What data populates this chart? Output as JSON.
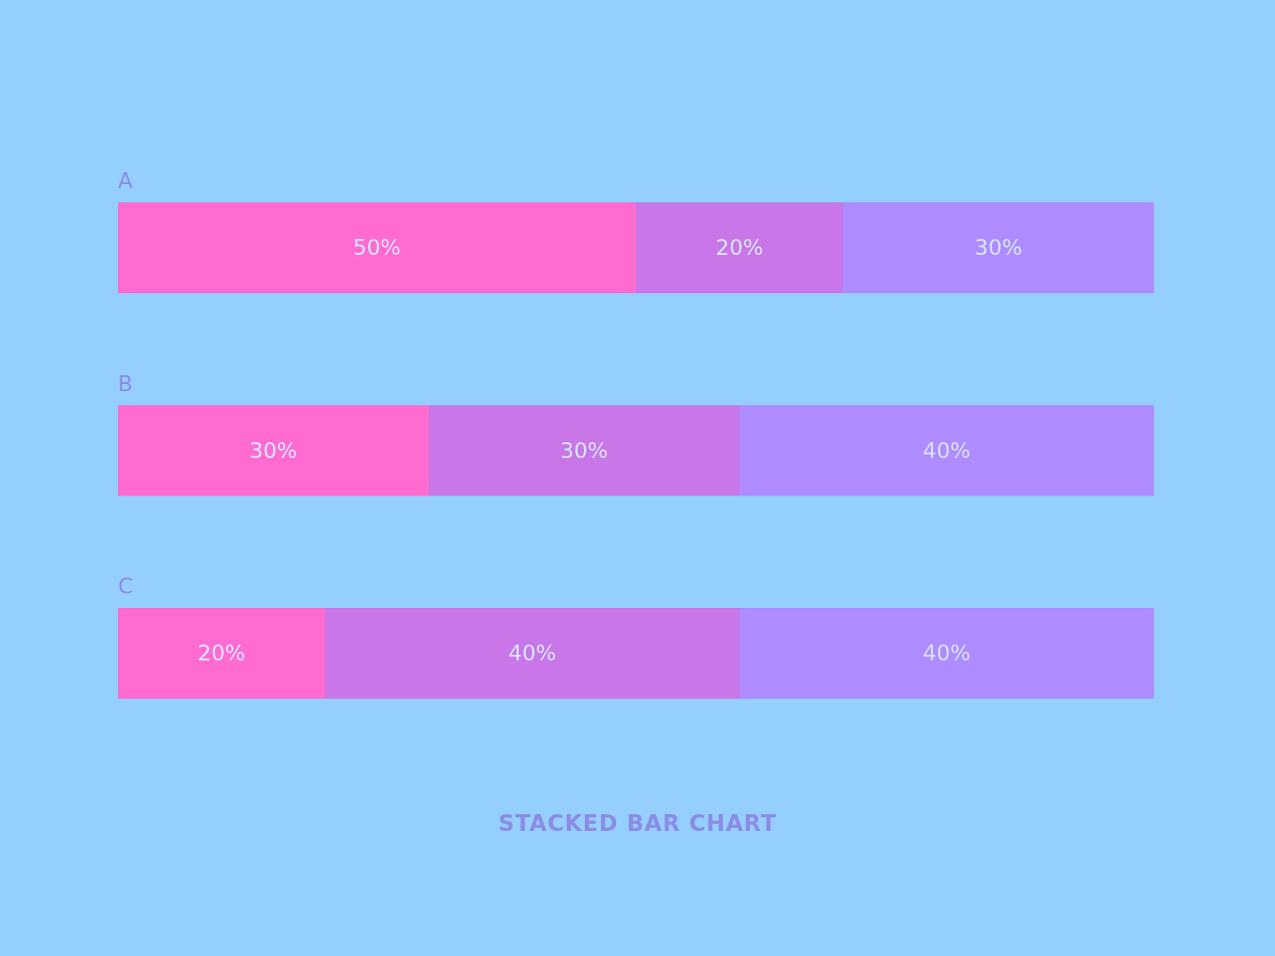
{
  "chart_data": {
    "type": "bar",
    "orientation": "horizontal",
    "stacked": true,
    "title": "STACKED BAR CHART",
    "categories": [
      "A",
      "B",
      "C"
    ],
    "xlim": [
      0,
      100
    ],
    "tick_labels": false,
    "series": [
      {
        "color": "#ff6bd1",
        "values": [
          50,
          30,
          20
        ],
        "value_labels": [
          "50%",
          "30%",
          "20%"
        ]
      },
      {
        "color": "#c876e8",
        "values": [
          20,
          30,
          40
        ],
        "value_labels": [
          "20%",
          "30%",
          "40%"
        ]
      },
      {
        "color": "#ae8bff",
        "values": [
          30,
          40,
          40
        ],
        "value_labels": [
          "30%",
          "40%",
          "40%"
        ]
      }
    ]
  }
}
